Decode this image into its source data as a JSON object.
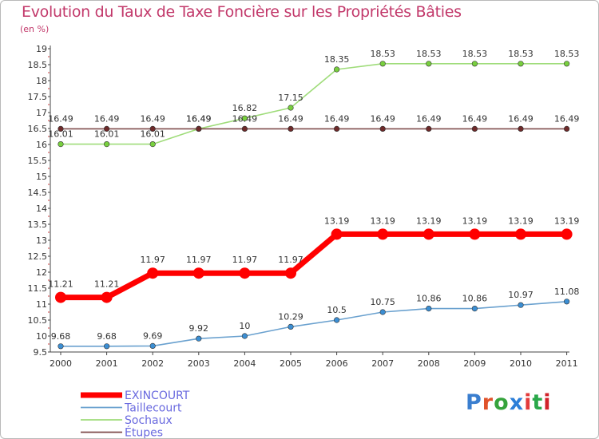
{
  "title": "Evolution du Taux de Taxe Foncière sur les Propriétés Bâties",
  "subtitle": "(en %)",
  "logo": {
    "text": "Proxiti",
    "letter_colors": [
      "#3a7ecf",
      "#e0522a",
      "#36a33c",
      "#2d7fd8",
      "#e33b3b",
      "#2aa84a",
      "#d1222a"
    ]
  },
  "chart_data": {
    "type": "line",
    "title": "Evolution du Taux de Taxe Foncière sur les Propriétés Bâties",
    "ylabel": "(en %)",
    "xlabel": "",
    "x": [
      "2000",
      "2001",
      "2002",
      "2003",
      "2004",
      "2005",
      "2006",
      "2007",
      "2008",
      "2009",
      "2010",
      "2011"
    ],
    "ylim": [
      9.5,
      19
    ],
    "yticks": [
      "9.5",
      "10",
      "10.5",
      "11",
      "11.5",
      "12",
      "12.5",
      "13",
      "13.5",
      "14",
      "14.5",
      "15",
      "15.5",
      "16",
      "16.5",
      "17",
      "17.5",
      "18",
      "18.5",
      "19"
    ],
    "grid": false,
    "legend_position": "bottom-left",
    "series": [
      {
        "name": "Taillecourt",
        "color": "#6aa1cf",
        "marker": "#3b8ed3",
        "thick": false,
        "values": [
          9.68,
          9.68,
          9.69,
          9.92,
          10,
          10.29,
          10.5,
          10.75,
          10.86,
          10.86,
          10.97,
          11.08
        ],
        "labels": [
          "9.68",
          "9.68",
          "9.69",
          "9.92",
          "10",
          "10.29",
          "10.5",
          "10.75",
          "10.86",
          "10.86",
          "10.97",
          "11.08"
        ]
      },
      {
        "name": "Sochaux",
        "color": "#9fdc7a",
        "marker": "#78cf3e",
        "thick": false,
        "values": [
          16.01,
          16.01,
          16.01,
          16.49,
          16.82,
          17.15,
          18.35,
          18.53,
          18.53,
          18.53,
          18.53,
          18.53
        ],
        "labels": [
          "16.01",
          "16.01",
          "16.01",
          "16.49",
          "16.82",
          "17.15",
          "18.35",
          "18.53",
          "18.53",
          "18.53",
          "18.53",
          "18.53"
        ]
      },
      {
        "name": "Étupes",
        "color": "#7f4c4c",
        "marker": "#6e2a2a",
        "thick": false,
        "values": [
          16.49,
          16.49,
          16.49,
          16.49,
          16.49,
          16.49,
          16.49,
          16.49,
          16.49,
          16.49,
          16.49,
          16.49
        ],
        "labels": [
          "16.49",
          "16.49",
          "16.49",
          "16.49",
          "16.49",
          "16.49",
          "16.49",
          "16.49",
          "16.49",
          "16.49",
          "16.49",
          "16.49"
        ]
      },
      {
        "name": "EXINCOURT",
        "color": "#ff0000",
        "marker": "#ff0000",
        "thick": true,
        "values": [
          11.21,
          11.21,
          11.97,
          11.97,
          11.97,
          11.97,
          13.19,
          13.19,
          13.19,
          13.19,
          13.19,
          13.19
        ],
        "labels": [
          "11.21",
          "11.21",
          "11.97",
          "11.97",
          "11.97",
          "11.97",
          "13.19",
          "13.19",
          "13.19",
          "13.19",
          "13.19",
          "13.19"
        ]
      }
    ],
    "legend_order": [
      "EXINCOURT",
      "Taillecourt",
      "Sochaux",
      "Étupes"
    ]
  }
}
